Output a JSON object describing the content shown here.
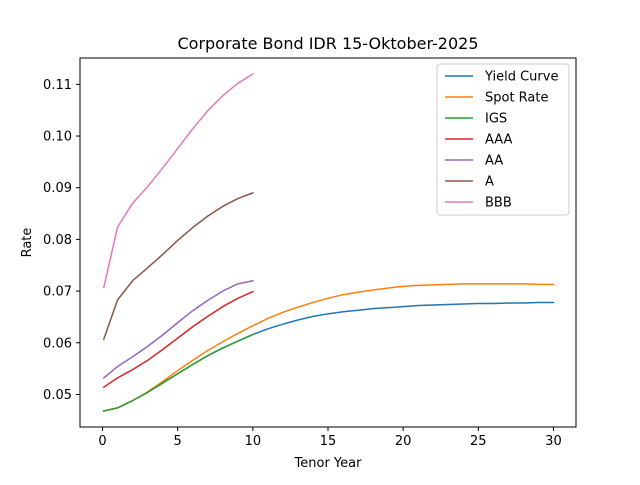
{
  "chart_data": {
    "type": "line",
    "title": "Corporate Bond IDR 15-Oktober-2025",
    "xlabel": "Tenor Year",
    "ylabel": "Rate",
    "xlim": [
      -1.5,
      31.5
    ],
    "ylim": [
      0.0437,
      0.1151
    ],
    "xticks": [
      0,
      5,
      10,
      15,
      20,
      25,
      30
    ],
    "yticks": [
      0.05,
      0.06,
      0.07,
      0.08,
      0.09,
      0.1,
      0.11
    ],
    "ytick_labels": [
      "0.05",
      "0.06",
      "0.07",
      "0.08",
      "0.09",
      "0.10",
      "0.11"
    ],
    "grid": false,
    "legend_position": "top-right",
    "series": [
      {
        "name": "Yield Curve",
        "color": "#1f77b4",
        "x": [
          0.083,
          1,
          2,
          3,
          4,
          5,
          6,
          7,
          8,
          9,
          10,
          11,
          12,
          13,
          14,
          15,
          16,
          17,
          18,
          19,
          20,
          21,
          22,
          23,
          24,
          25,
          26,
          27,
          28,
          29,
          30
        ],
        "y": [
          0.0468,
          0.0474,
          0.0488,
          0.0504,
          0.0522,
          0.054,
          0.0558,
          0.0575,
          0.059,
          0.0603,
          0.0616,
          0.0627,
          0.0636,
          0.0644,
          0.0651,
          0.0656,
          0.066,
          0.0663,
          0.0666,
          0.0668,
          0.067,
          0.0672,
          0.0673,
          0.0674,
          0.0675,
          0.0676,
          0.0676,
          0.0677,
          0.0677,
          0.0678,
          0.0678
        ]
      },
      {
        "name": "Spot Rate",
        "color": "#ff7f0e",
        "x": [
          0.083,
          1,
          2,
          3,
          4,
          5,
          6,
          7,
          8,
          9,
          10,
          11,
          12,
          13,
          14,
          15,
          16,
          17,
          18,
          19,
          20,
          21,
          22,
          23,
          24,
          25,
          26,
          27,
          28,
          29,
          30
        ],
        "y": [
          0.0468,
          0.0474,
          0.0488,
          0.0505,
          0.0525,
          0.0546,
          0.0566,
          0.0585,
          0.0602,
          0.0618,
          0.0633,
          0.0647,
          0.0659,
          0.0669,
          0.0678,
          0.0686,
          0.0693,
          0.0698,
          0.0702,
          0.0706,
          0.0709,
          0.0711,
          0.0712,
          0.0713,
          0.0714,
          0.0714,
          0.0714,
          0.0714,
          0.0714,
          0.0713,
          0.0713
        ]
      },
      {
        "name": "IGS",
        "color": "#2ca02c",
        "x": [
          0.083,
          1,
          2,
          3,
          4,
          5,
          6,
          7,
          8,
          9,
          10
        ],
        "y": [
          0.0468,
          0.0474,
          0.0488,
          0.0504,
          0.0522,
          0.054,
          0.0558,
          0.0575,
          0.059,
          0.0603,
          0.0616
        ]
      },
      {
        "name": "AAA",
        "color": "#d62728",
        "x": [
          0.083,
          1,
          2,
          3,
          4,
          5,
          6,
          7,
          8,
          9,
          10
        ],
        "y": [
          0.0514,
          0.0532,
          0.0548,
          0.0566,
          0.0587,
          0.0609,
          0.0631,
          0.0651,
          0.067,
          0.0686,
          0.0699
        ]
      },
      {
        "name": "AA",
        "color": "#9467bd",
        "x": [
          0.083,
          1,
          2,
          3,
          4,
          5,
          6,
          7,
          8,
          9,
          10
        ],
        "y": [
          0.0532,
          0.0554,
          0.0573,
          0.0593,
          0.0615,
          0.0639,
          0.0662,
          0.0682,
          0.07,
          0.0714,
          0.072
        ]
      },
      {
        "name": "A",
        "color": "#8c564b",
        "x": [
          0.083,
          1,
          2,
          3,
          4,
          5,
          6,
          7,
          8,
          9,
          10
        ],
        "y": [
          0.0607,
          0.0683,
          0.072,
          0.0745,
          0.0771,
          0.0798,
          0.0823,
          0.0845,
          0.0864,
          0.0879,
          0.089
        ]
      },
      {
        "name": "BBB",
        "color": "#e377c2",
        "x": [
          0.083,
          1,
          2,
          3,
          4,
          5,
          6,
          7,
          8,
          9,
          10
        ],
        "y": [
          0.0707,
          0.0824,
          0.087,
          0.0902,
          0.0938,
          0.0976,
          0.1014,
          0.1049,
          0.1078,
          0.1102,
          0.112
        ]
      }
    ]
  }
}
